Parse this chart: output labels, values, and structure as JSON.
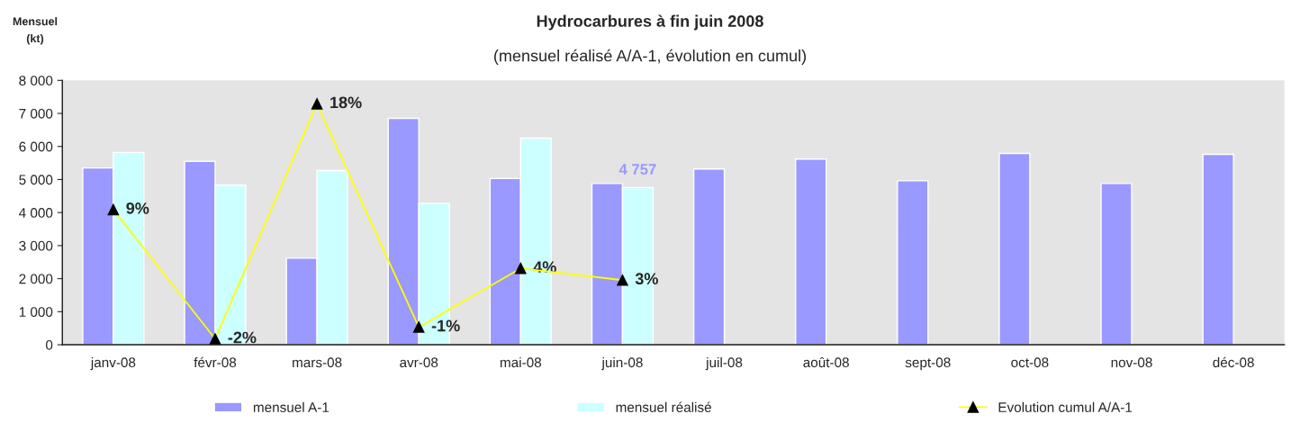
{
  "chart_data": {
    "type": "bar",
    "title": "Hydrocarbures à fin juin 2008",
    "subtitle": "(mensuel réalisé A/A-1, évolution en cumul)",
    "ylabel": "Mensuel\n(kt)",
    "categories": [
      "janv-08",
      "févr-08",
      "mars-08",
      "avr-08",
      "mai-08",
      "juin-08",
      "juil-08",
      "août-08",
      "sept-08",
      "oct-08",
      "nov-08",
      "déc-08"
    ],
    "series": [
      {
        "name": "mensuel A-1",
        "color": "#9999ff",
        "values": [
          5350,
          5550,
          2620,
          6850,
          5030,
          4880,
          5320,
          5620,
          4960,
          5790,
          4880,
          5760
        ]
      },
      {
        "name": "mensuel réalisé",
        "color": "#ccffff",
        "values": [
          5820,
          4830,
          5270,
          4280,
          6250,
          4757,
          null,
          null,
          null,
          null,
          null,
          null
        ],
        "value_labels": [
          null,
          null,
          null,
          null,
          null,
          "4 757",
          null,
          null,
          null,
          null,
          null,
          null
        ]
      },
      {
        "name": "Evolution cumul A/A-1",
        "type": "line",
        "axis": "y2",
        "color": "#ffff00",
        "marker": "triangle",
        "values": [
          9,
          -2,
          18,
          -1,
          4,
          3,
          null,
          null,
          null,
          null,
          null,
          null
        ],
        "value_labels": [
          "9%",
          "-2%",
          "18%",
          "-1%",
          "4%",
          "3%",
          null,
          null,
          null,
          null,
          null,
          null
        ]
      }
    ],
    "ylim": [
      0,
      8000
    ],
    "yticks": [
      {
        "value": 0,
        "label": "0"
      },
      {
        "value": 1000,
        "label": "1 000"
      },
      {
        "value": 2000,
        "label": "2 000"
      },
      {
        "value": 3000,
        "label": "3 000"
      },
      {
        "value": 4000,
        "label": "4 000"
      },
      {
        "value": 5000,
        "label": "5 000"
      },
      {
        "value": 6000,
        "label": "6 000"
      },
      {
        "value": 7000,
        "label": "7 000"
      },
      {
        "value": 8000,
        "label": "8 000"
      }
    ],
    "y2lim": [
      -2.5,
      20
    ],
    "legend": "bottom",
    "grid": false
  }
}
